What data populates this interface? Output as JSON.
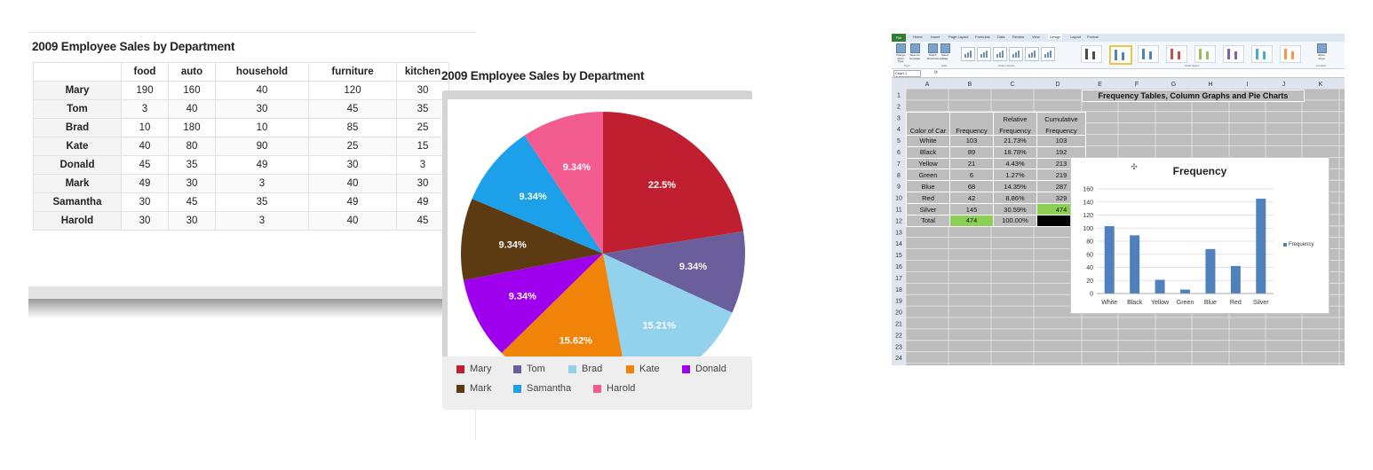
{
  "sales_table": {
    "title": "2009 Employee Sales by Department",
    "columns": [
      "",
      "food",
      "auto",
      "household",
      "furniture",
      "kitchen"
    ],
    "rows": [
      {
        "name": "Mary",
        "values": [
          "190",
          "160",
          "40",
          "120",
          "30"
        ]
      },
      {
        "name": "Tom",
        "values": [
          "3",
          "40",
          "30",
          "45",
          "35"
        ]
      },
      {
        "name": "Brad",
        "values": [
          "10",
          "180",
          "10",
          "85",
          "25"
        ]
      },
      {
        "name": "Kate",
        "values": [
          "40",
          "80",
          "90",
          "25",
          "15"
        ]
      },
      {
        "name": "Donald",
        "values": [
          "45",
          "35",
          "49",
          "30",
          "3"
        ]
      },
      {
        "name": "Mark",
        "values": [
          "49",
          "30",
          "3",
          "40",
          "30"
        ]
      },
      {
        "name": "Samantha",
        "values": [
          "30",
          "45",
          "35",
          "49",
          "49"
        ]
      },
      {
        "name": "Harold",
        "values": [
          "30",
          "30",
          "3",
          "40",
          "45"
        ]
      }
    ]
  },
  "pie": {
    "title": "2009 Employee Sales by Department",
    "slices": [
      {
        "name": "Mary",
        "value": 22.5,
        "label": "22.5%",
        "color": "#c01f2f"
      },
      {
        "name": "Tom",
        "value": 9.34,
        "label": "9.34%",
        "color": "#6a5f9c"
      },
      {
        "name": "Brad",
        "value": 15.21,
        "label": "15.21%",
        "color": "#92d2ec"
      },
      {
        "name": "Kate",
        "value": 15.62,
        "label": "15.62%",
        "color": "#f08308"
      },
      {
        "name": "Donald",
        "value": 9.34,
        "label": "9.34%",
        "color": "#9e00ee"
      },
      {
        "name": "Mark",
        "value": 9.34,
        "label": "9.34%",
        "color": "#5c3a12"
      },
      {
        "name": "Samantha",
        "value": 9.34,
        "label": "9.34%",
        "color": "#1ca0ea"
      },
      {
        "name": "Harold",
        "value": 9.34,
        "label": "9.34%",
        "color": "#f25c8f"
      }
    ]
  },
  "excel": {
    "file_tab": "File",
    "ribbon_tabs": [
      "Home",
      "Insert",
      "Page Layout",
      "Formulas",
      "Data",
      "Review",
      "View",
      "Design",
      "Layout",
      "Format"
    ],
    "ribbon_buttons": [
      "Change Chart Type",
      "Save As Template",
      "Switch Row/Column",
      "Select Data"
    ],
    "ribbon_groups": [
      "Type",
      "Data",
      "Chart Layouts",
      "Chart Styles",
      "Location"
    ],
    "move_chart": "Move Chart",
    "name_box": "Chart 1",
    "fx": "fx",
    "columns": [
      "A",
      "B",
      "C",
      "D",
      "E",
      "F",
      "G",
      "H",
      "I",
      "J",
      "K"
    ],
    "row_numbers": [
      "1",
      "2",
      "3",
      "4",
      "5",
      "6",
      "7",
      "8",
      "9",
      "10",
      "11",
      "12",
      "13",
      "14",
      "15",
      "16",
      "17",
      "18",
      "19",
      "20",
      "21",
      "22",
      "23",
      "24"
    ],
    "sheet_title": "Frequency Tables, Column Graphs and Pie Charts",
    "headers": {
      "color": "Color of Car",
      "freq": "Frequency",
      "rel_a": "Relative",
      "rel_b": "Frequency",
      "cum_a": "Cumulative",
      "cum_b": "Frequency"
    },
    "rows": [
      {
        "color": "White",
        "freq": "103",
        "rel": "21.73%",
        "cum": "103"
      },
      {
        "color": "Black",
        "freq": "89",
        "rel": "18.78%",
        "cum": "192"
      },
      {
        "color": "Yellow",
        "freq": "21",
        "rel": "4.43%",
        "cum": "213"
      },
      {
        "color": "Green",
        "freq": "6",
        "rel": "1.27%",
        "cum": "219"
      },
      {
        "color": "Blue",
        "freq": "68",
        "rel": "14.35%",
        "cum": "287"
      },
      {
        "color": "Red",
        "freq": "42",
        "rel": "8.86%",
        "cum": "329"
      },
      {
        "color": "Silver",
        "freq": "145",
        "rel": "30.59%",
        "cum": "474"
      }
    ],
    "total": {
      "label": "Total",
      "freq": "474",
      "rel": "100.00%"
    },
    "colors": {
      "green": "#8ccf55",
      "grid": "#bdbdbd",
      "bar": "#4f81bd"
    }
  },
  "chart_data": [
    {
      "type": "pie",
      "title": "2009 Employee Sales by Department",
      "categories": [
        "Mary",
        "Tom",
        "Brad",
        "Kate",
        "Donald",
        "Mark",
        "Samantha",
        "Harold"
      ],
      "values": [
        22.5,
        9.34,
        15.21,
        15.62,
        9.34,
        9.34,
        9.34,
        9.34
      ],
      "legend": "bottom"
    },
    {
      "type": "bar",
      "title": "Frequency",
      "categories": [
        "White",
        "Black",
        "Yellow",
        "Green",
        "Blue",
        "Red",
        "Silver"
      ],
      "series": [
        {
          "name": "Frequency",
          "values": [
            103,
            89,
            21,
            6,
            68,
            42,
            145
          ]
        }
      ],
      "ylim": [
        0,
        160
      ],
      "yticks": [
        "0",
        "20",
        "40",
        "60",
        "80",
        "100",
        "120",
        "140",
        "160"
      ],
      "grid": true,
      "legend": "right"
    }
  ]
}
